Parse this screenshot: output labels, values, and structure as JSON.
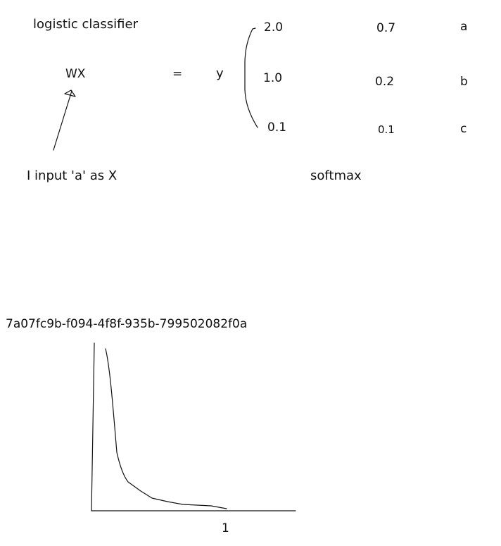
{
  "title": "logistic classifier",
  "equation": {
    "left": "WX",
    "equals": "=",
    "right": "y"
  },
  "logits": [
    "2.0",
    "1.0",
    "0.1"
  ],
  "probabilities": [
    "0.7",
    "0.2",
    "0.1"
  ],
  "classes": [
    "a",
    "b",
    "c"
  ],
  "annotation": "I input 'a' as X",
  "operation_label": "softmax",
  "identifier": "7a07fc9b-f094-4f8f-935b-799502082f0a",
  "graph": {
    "x_tick_label": "1"
  }
}
